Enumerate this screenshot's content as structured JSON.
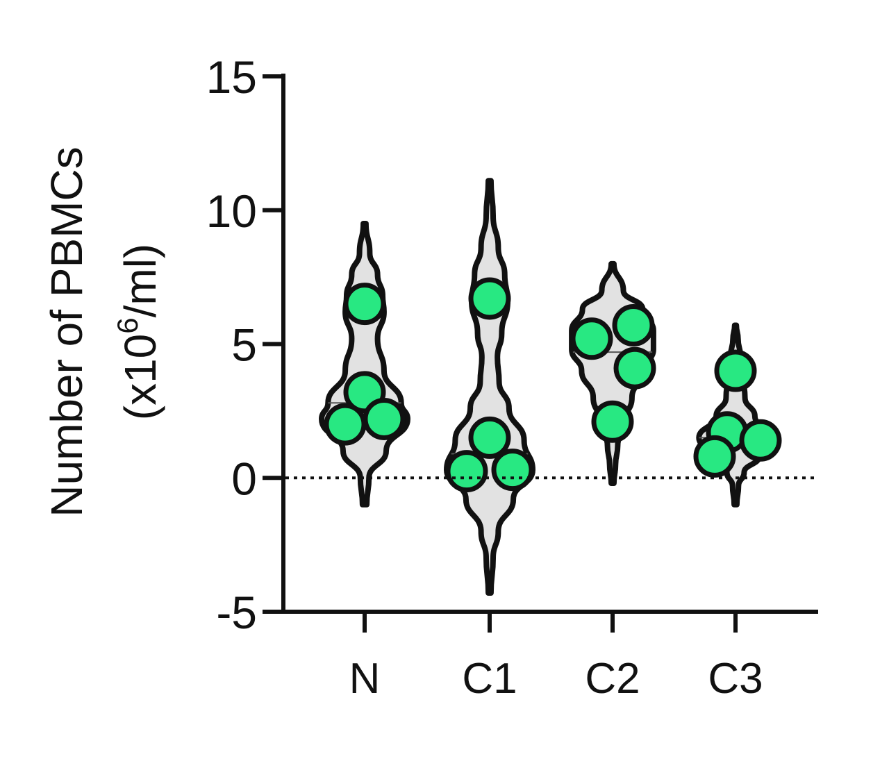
{
  "chart_data": {
    "type": "violin",
    "title": "",
    "xlabel": "",
    "ylabel": {
      "line1": "Number of PBMCs",
      "line2_prefix": "(x10",
      "line2_superscript": "6",
      "line2_suffix": "/ml)"
    },
    "ylim": [
      -5,
      15
    ],
    "yticks": [
      {
        "value": 15,
        "label": "15"
      },
      {
        "value": 10,
        "label": "10"
      },
      {
        "value": 5,
        "label": "5"
      },
      {
        "value": 0,
        "label": "0"
      },
      {
        "value": -5,
        "label": "-5"
      }
    ],
    "reference_line": {
      "value": 0,
      "style": "dotted"
    },
    "categories": [
      "N",
      "C1",
      "C2",
      "C3"
    ],
    "groups": [
      {
        "name": "N",
        "points": [
          6.5,
          3.2,
          2.0,
          2.2
        ],
        "median": 2.8,
        "violin": {
          "min": -1.0,
          "max": 9.5,
          "profile": [
            [
              -1.0,
              0.05
            ],
            [
              0.0,
              0.1
            ],
            [
              1.0,
              0.5
            ],
            [
              2.2,
              1.0
            ],
            [
              2.8,
              0.85
            ],
            [
              4.0,
              0.45
            ],
            [
              5.2,
              0.3
            ],
            [
              6.2,
              0.45
            ],
            [
              6.8,
              0.42
            ],
            [
              7.6,
              0.3
            ],
            [
              8.4,
              0.12
            ],
            [
              9.5,
              0.03
            ]
          ]
        }
      },
      {
        "name": "C1",
        "points": [
          6.7,
          1.5,
          0.25,
          0.3
        ],
        "median": 0.9,
        "violin": {
          "min": -4.3,
          "max": 11.1,
          "profile": [
            [
              -4.3,
              0.03
            ],
            [
              -3.0,
              0.08
            ],
            [
              -2.0,
              0.2
            ],
            [
              -0.8,
              0.55
            ],
            [
              0.3,
              1.0
            ],
            [
              1.4,
              0.8
            ],
            [
              2.6,
              0.45
            ],
            [
              3.6,
              0.22
            ],
            [
              4.5,
              0.18
            ],
            [
              5.4,
              0.28
            ],
            [
              6.6,
              0.42
            ],
            [
              7.6,
              0.35
            ],
            [
              8.6,
              0.2
            ],
            [
              9.8,
              0.08
            ],
            [
              11.1,
              0.03
            ]
          ]
        }
      },
      {
        "name": "C2",
        "points": [
          5.2,
          5.7,
          4.1,
          2.1
        ],
        "median": 4.7,
        "violin": {
          "min": -0.2,
          "max": 8.0,
          "profile": [
            [
              -0.2,
              0.03
            ],
            [
              0.5,
              0.07
            ],
            [
              1.2,
              0.12
            ],
            [
              2.0,
              0.25
            ],
            [
              3.0,
              0.45
            ],
            [
              4.0,
              0.72
            ],
            [
              4.8,
              0.95
            ],
            [
              5.5,
              0.95
            ],
            [
              6.3,
              0.7
            ],
            [
              7.0,
              0.25
            ],
            [
              8.0,
              0.03
            ]
          ]
        }
      },
      {
        "name": "C3",
        "points": [
          4.0,
          1.7,
          0.8,
          1.4
        ],
        "median": 1.5,
        "violin": {
          "min": -1.0,
          "max": 5.7,
          "profile": [
            [
              -1.0,
              0.03
            ],
            [
              -0.3,
              0.07
            ],
            [
              0.2,
              0.2
            ],
            [
              0.8,
              0.55
            ],
            [
              1.5,
              0.85
            ],
            [
              2.3,
              0.45
            ],
            [
              3.0,
              0.22
            ],
            [
              3.8,
              0.18
            ],
            [
              4.5,
              0.12
            ],
            [
              5.2,
              0.06
            ],
            [
              5.7,
              0.02
            ]
          ]
        }
      }
    ],
    "colors": {
      "point_fill": "#28e882",
      "point_stroke": "#111111",
      "violin_fill": "#e2e2e2",
      "violin_stroke": "#111111",
      "axis": "#111111"
    }
  }
}
